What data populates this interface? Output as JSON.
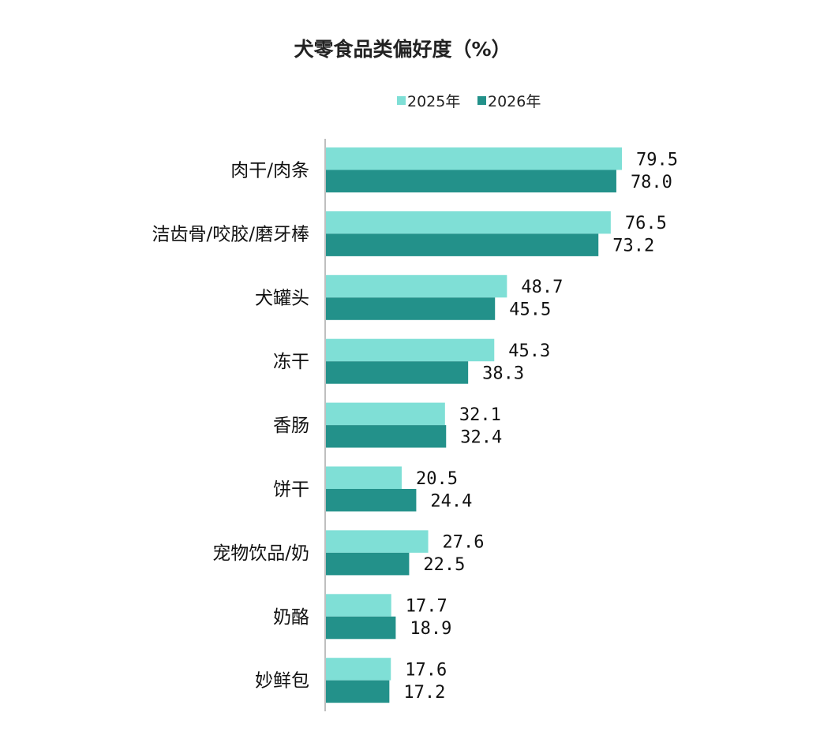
{
  "chart_data": {
    "type": "bar",
    "orientation": "horizontal",
    "title": "犬零食品类偏好度（%）",
    "categories": [
      "肉干/肉条",
      "洁齿骨/咬胶/磨牙棒",
      "犬罐头",
      "冻干",
      "香肠",
      "饼干",
      "宠物饮品/奶",
      "奶酪",
      "妙鲜包"
    ],
    "series": [
      {
        "name": "2025年",
        "color": "#7fdfd6",
        "values": [
          79.5,
          76.5,
          48.7,
          45.3,
          32.1,
          20.5,
          27.6,
          17.7,
          17.6
        ]
      },
      {
        "name": "2026年",
        "color": "#23918a",
        "values": [
          78.0,
          73.2,
          45.5,
          38.3,
          32.4,
          24.4,
          22.5,
          18.9,
          17.2
        ]
      }
    ],
    "xlim": [
      0,
      100
    ],
    "value_label_format": "0.0",
    "legend_position": "top-center",
    "grid": false,
    "axis_color": "#bfbfbf"
  }
}
